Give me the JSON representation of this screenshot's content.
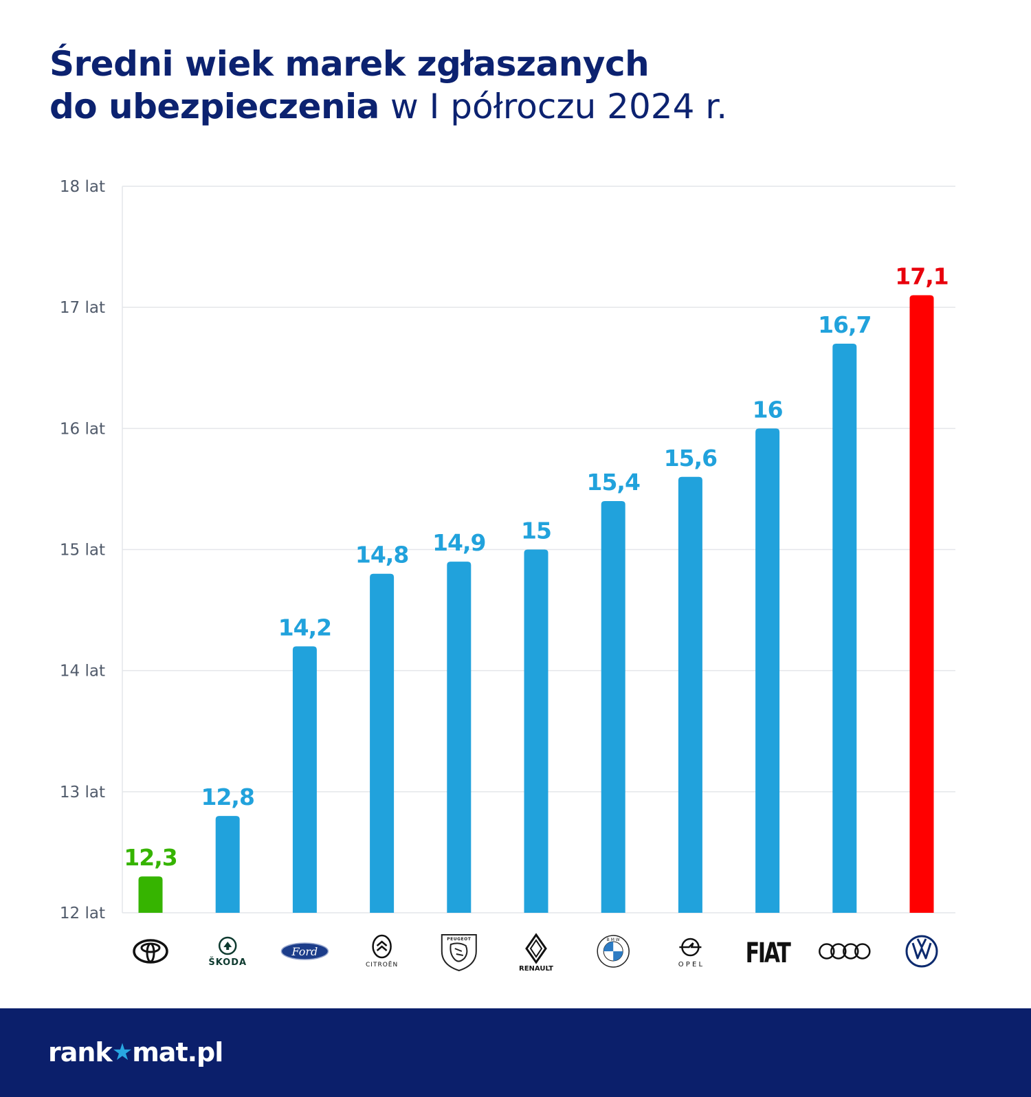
{
  "header": {
    "title_bold_line1": "Średni wiek marek zgłaszanych",
    "title_bold_line2": "do ubezpieczenia",
    "title_light_line2": " w I półroczu 2024 r."
  },
  "chart_data": {
    "type": "bar",
    "title": "Średni wiek marek zgłaszanych do ubezpieczenia w I półroczu 2024 r.",
    "categories": [
      "Toyota",
      "Škoda",
      "Ford",
      "Citroën",
      "Peugeot",
      "Renault",
      "BMW",
      "Opel",
      "Fiat",
      "Audi",
      "Volkswagen"
    ],
    "category_logo_text": [
      "",
      "ŠKODA",
      "Ford",
      "CITROËN",
      "PEUGEOT",
      "RENAULT",
      "B M W",
      "O P E L",
      "FIAT",
      "",
      ""
    ],
    "values": [
      12.3,
      12.8,
      14.2,
      14.8,
      14.9,
      15.0,
      15.4,
      15.6,
      16.0,
      16.7,
      17.1
    ],
    "value_labels": [
      "12,3",
      "12,8",
      "14,2",
      "14,8",
      "14,9",
      "15",
      "15,4",
      "15,6",
      "16",
      "16,7",
      "17,1"
    ],
    "ylim": [
      12,
      18
    ],
    "y_ticks": [
      12,
      13,
      14,
      15,
      16,
      17,
      18
    ],
    "y_tick_labels": [
      "12 lat",
      "13 lat",
      "14 lat",
      "15 lat",
      "16 lat",
      "17 lat",
      "18 lat"
    ],
    "xlabel": "",
    "ylabel": "",
    "grid": "horizontal",
    "colors": {
      "default": "#21a2dc",
      "lowest": "#36b400",
      "highest": "#ff0000",
      "label_default": "#21a2dc",
      "label_lowest": "#36b400",
      "label_highest": "#e8000c"
    },
    "highlight": {
      "lowest_index": 0,
      "highest_index": 10
    }
  },
  "footer": {
    "logo_prefix": "rank",
    "logo_star": "★",
    "logo_suffix": "mat.pl"
  }
}
